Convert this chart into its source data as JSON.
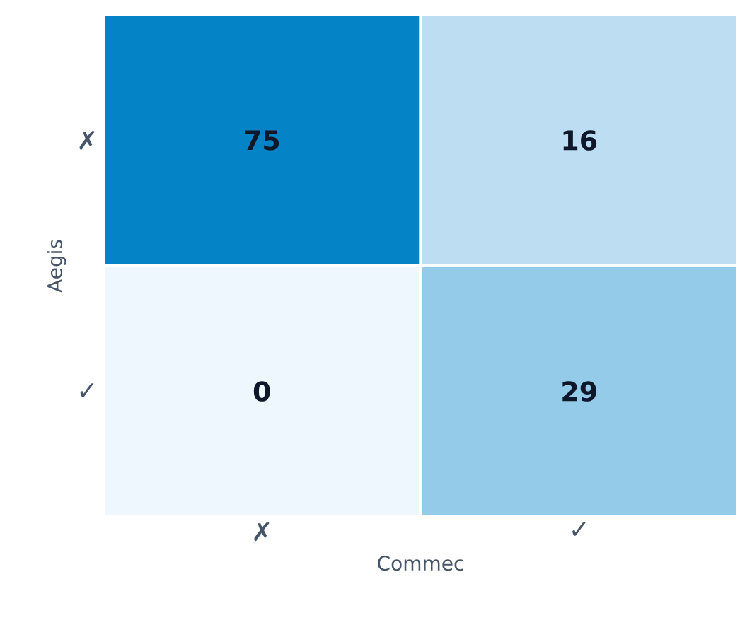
{
  "chart_data": {
    "type": "heatmap",
    "xlabel": "Commec",
    "ylabel": "Aegis",
    "categories": [
      "✗",
      "✓"
    ],
    "y_categories": [
      "✗",
      "✓"
    ],
    "cells": [
      [
        75,
        16
      ],
      [
        0,
        29
      ]
    ],
    "data_labels": true
  }
}
